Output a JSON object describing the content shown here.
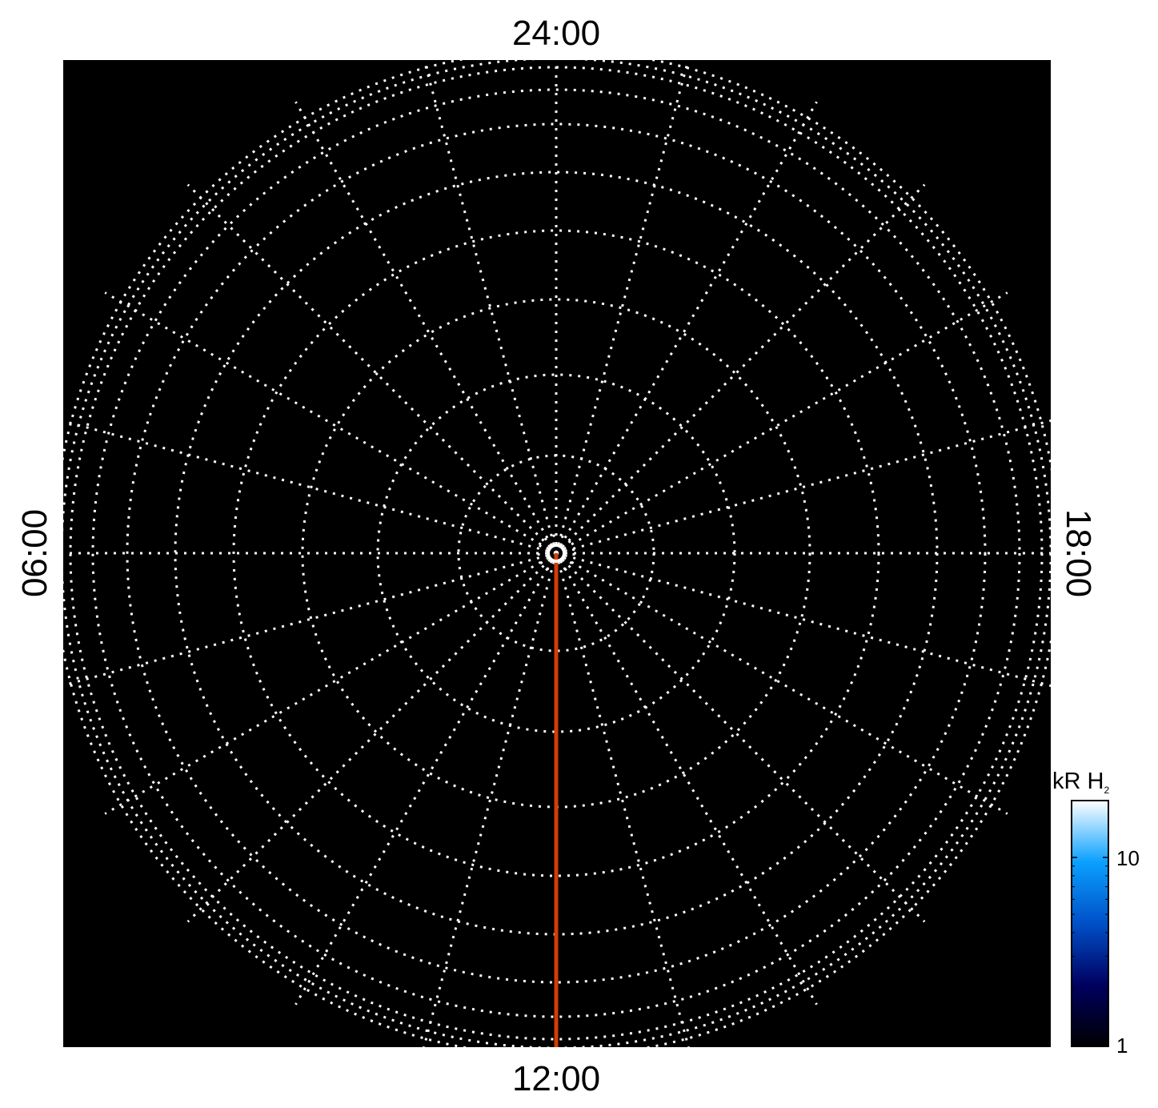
{
  "chart_data": {
    "type": "heatmap",
    "projection": "polar",
    "title": "",
    "local_time_labels": {
      "top": "24:00",
      "bottom": "12:00",
      "left": "06:00",
      "right": "18:00"
    },
    "meridian_spacing_hours": 1,
    "latitude_grid_spacing_deg": 10,
    "grid": true,
    "grid_style": "dotted",
    "background_color": "#000000",
    "grid_color": "#ffffff",
    "highlight_meridian": {
      "local_time": "12:00",
      "color": "#d23c0a"
    },
    "colorbar": {
      "label": "kR H",
      "label_subscript": "2",
      "scale": "log",
      "range": [
        1,
        20
      ],
      "ticks": [
        {
          "value": 1,
          "label": "1"
        },
        {
          "value": 10,
          "label": "10"
        }
      ],
      "colors": [
        "#000000",
        "#000060",
        "#0050c8",
        "#0aa0ff",
        "#ffffff"
      ],
      "placement": "bottom-right"
    }
  }
}
